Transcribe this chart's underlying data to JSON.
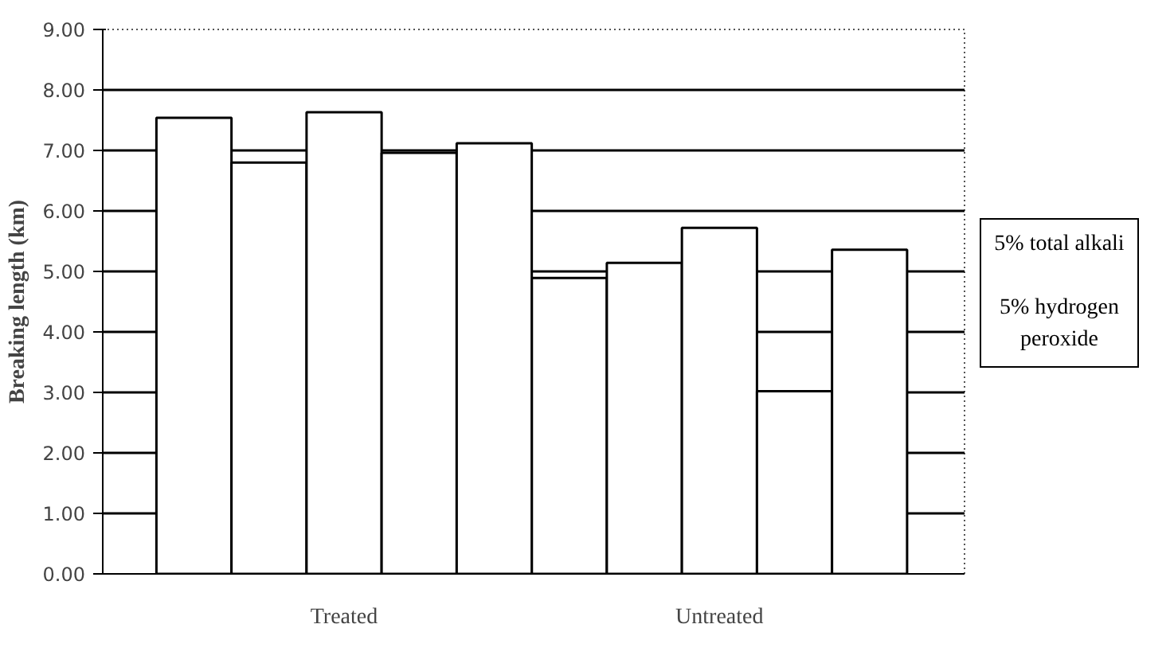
{
  "chart_data": {
    "type": "bar",
    "ylabel": "Breaking length (km)",
    "categories": [
      "Treated",
      "Untreated"
    ],
    "series": [
      {
        "color": "#ffffff",
        "values": [
          7.54,
          4.89
        ]
      },
      {
        "color": "#ffffff",
        "values": [
          6.8,
          5.14
        ]
      },
      {
        "color": "#ffffff",
        "values": [
          7.63,
          5.72
        ]
      },
      {
        "color": "#ffffff",
        "values": [
          6.96,
          3.02
        ]
      },
      {
        "color": "#ffffff",
        "values": [
          7.12,
          5.36
        ]
      }
    ],
    "ylim": [
      0,
      9
    ],
    "yticks": [
      {
        "value": 0,
        "label": "0.00"
      },
      {
        "value": 1,
        "label": "1.00"
      },
      {
        "value": 2,
        "label": "2.00"
      },
      {
        "value": 3,
        "label": "3.00"
      },
      {
        "value": 4,
        "label": "4.00"
      },
      {
        "value": 5,
        "label": "5.00"
      },
      {
        "value": 6,
        "label": "6.00"
      },
      {
        "value": 7,
        "label": "7.00"
      },
      {
        "value": 8,
        "label": "8.00"
      },
      {
        "value": 9,
        "label": "9.00"
      }
    ],
    "grid": "y",
    "annotations": [
      "5% total alkali",
      "5% hydrogen peroxide"
    ]
  }
}
